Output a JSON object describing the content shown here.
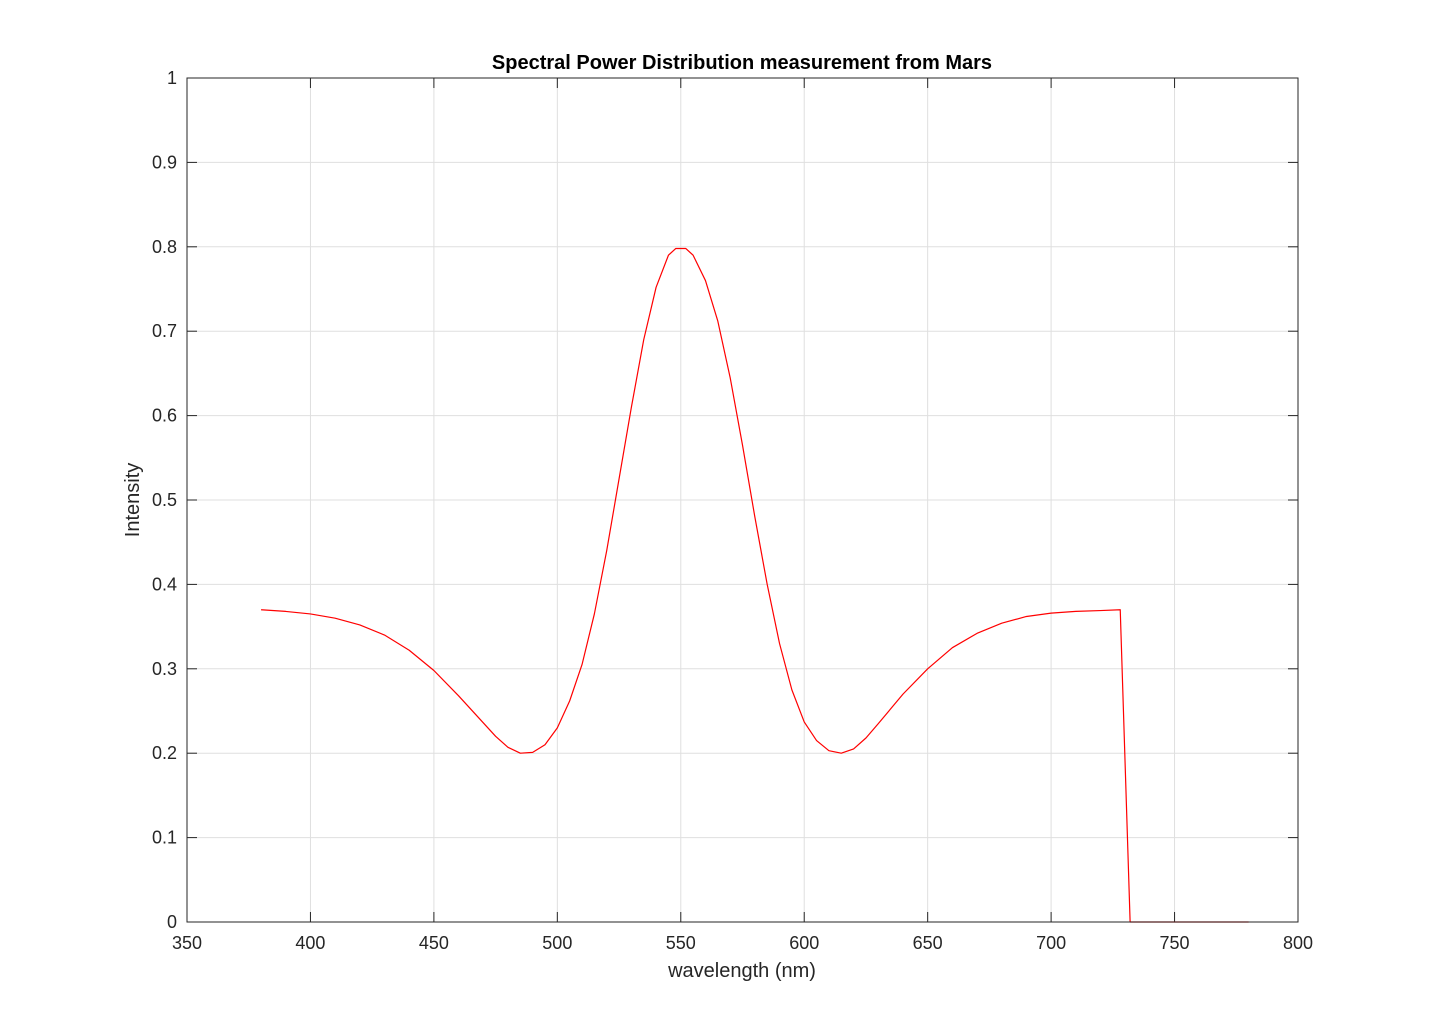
{
  "chart_data": {
    "type": "line",
    "title": "Spectral Power Distribution measurement from Mars",
    "xlabel": "wavelength (nm)",
    "ylabel": "Intensity",
    "xlim": [
      350,
      800
    ],
    "ylim": [
      0,
      1
    ],
    "xticks": [
      350,
      400,
      450,
      500,
      550,
      600,
      650,
      700,
      750,
      800
    ],
    "yticks": [
      0,
      0.1,
      0.2,
      0.3,
      0.4,
      0.5,
      0.6,
      0.7,
      0.8,
      0.9,
      1
    ],
    "xtick_labels": [
      "350",
      "400",
      "450",
      "500",
      "550",
      "600",
      "650",
      "700",
      "750",
      "800"
    ],
    "ytick_labels": [
      "0",
      "0.1",
      "0.2",
      "0.3",
      "0.4",
      "0.5",
      "0.6",
      "0.7",
      "0.8",
      "0.9",
      "1"
    ],
    "grid": true,
    "series": [
      {
        "color": "#ff0000",
        "x": [
          380,
          390,
          400,
          410,
          420,
          430,
          440,
          450,
          460,
          470,
          475,
          480,
          485,
          490,
          495,
          500,
          505,
          510,
          515,
          520,
          525,
          530,
          535,
          540,
          545,
          548,
          552,
          555,
          560,
          565,
          570,
          575,
          580,
          585,
          590,
          595,
          600,
          605,
          610,
          615,
          620,
          625,
          630,
          640,
          650,
          660,
          670,
          680,
          690,
          700,
          710,
          720,
          728,
          732,
          740,
          750,
          760,
          770,
          780
        ],
        "y": [
          0.37,
          0.368,
          0.365,
          0.36,
          0.352,
          0.34,
          0.322,
          0.298,
          0.268,
          0.236,
          0.22,
          0.207,
          0.2,
          0.201,
          0.21,
          0.23,
          0.262,
          0.305,
          0.365,
          0.44,
          0.525,
          0.61,
          0.69,
          0.752,
          0.79,
          0.798,
          0.798,
          0.79,
          0.76,
          0.712,
          0.645,
          0.565,
          0.48,
          0.4,
          0.33,
          0.275,
          0.237,
          0.215,
          0.203,
          0.2,
          0.205,
          0.218,
          0.235,
          0.27,
          0.3,
          0.325,
          0.342,
          0.354,
          0.362,
          0.366,
          0.368,
          0.369,
          0.37,
          0.0,
          0.0,
          0.0,
          0.0,
          0.0,
          0.0
        ]
      }
    ]
  }
}
